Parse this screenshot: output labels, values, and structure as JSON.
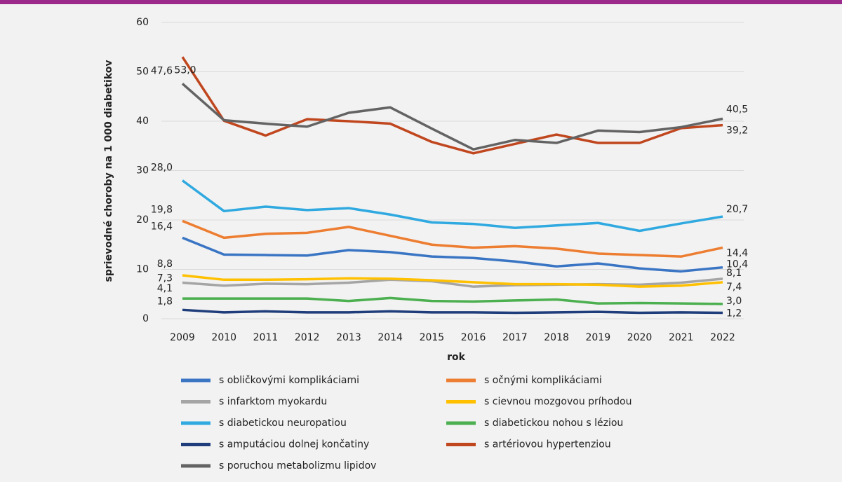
{
  "chart_data": {
    "type": "line",
    "x_label": "rok",
    "y_label": "sprievodné choroby na 1 000 diabetikov",
    "categories": [
      "2009",
      "2010",
      "2011",
      "2012",
      "2013",
      "2014",
      "2015",
      "2016",
      "2017",
      "2018",
      "2019",
      "2020",
      "2021",
      "2022"
    ],
    "ylim": [
      0,
      60
    ],
    "yticks": [
      0,
      10,
      20,
      30,
      40,
      50,
      60
    ],
    "grid": true,
    "series": [
      {
        "name": "s obličkovými komplikáciami",
        "color": "#3a75c4",
        "values": [
          16.4,
          13.0,
          12.9,
          12.8,
          13.9,
          13.5,
          12.6,
          12.3,
          11.6,
          10.6,
          11.2,
          10.2,
          9.6,
          10.4
        ],
        "value_labels": [
          "16,4",
          null,
          null,
          null,
          null,
          null,
          null,
          null,
          null,
          null,
          null,
          null,
          null,
          "10,4"
        ]
      },
      {
        "name": "s očnými komplikáciami",
        "color": "#ed7d31",
        "values": [
          19.8,
          16.4,
          17.2,
          17.4,
          18.6,
          16.8,
          15.0,
          14.4,
          14.7,
          14.2,
          13.2,
          12.9,
          12.6,
          14.4
        ],
        "value_labels": [
          "19,8",
          null,
          null,
          null,
          null,
          null,
          null,
          null,
          null,
          null,
          null,
          null,
          null,
          "14,4"
        ]
      },
      {
        "name": "s infarktom myokardu",
        "color": "#a5a5a5",
        "values": [
          7.3,
          6.7,
          7.1,
          7.0,
          7.3,
          7.9,
          7.6,
          6.5,
          6.8,
          6.9,
          7.0,
          6.9,
          7.3,
          8.1
        ],
        "value_labels": [
          "7,3",
          null,
          null,
          null,
          null,
          null,
          null,
          null,
          null,
          null,
          null,
          null,
          null,
          "8,1"
        ]
      },
      {
        "name": "s cievnou mozgovou príhodou",
        "color": "#ffc000",
        "values": [
          8.8,
          7.9,
          7.9,
          8.0,
          8.2,
          8.1,
          7.8,
          7.4,
          7.0,
          7.0,
          6.9,
          6.5,
          6.7,
          7.4
        ],
        "value_labels": [
          "8,8",
          null,
          null,
          null,
          null,
          null,
          null,
          null,
          null,
          null,
          null,
          null,
          null,
          "7,4"
        ]
      },
      {
        "name": "s diabetickou neuropatiou",
        "color": "#2fa9e0",
        "values": [
          28.0,
          21.8,
          22.7,
          22.0,
          22.4,
          21.1,
          19.5,
          19.2,
          18.4,
          18.9,
          19.4,
          17.8,
          19.3,
          20.7
        ],
        "value_labels": [
          "28,0",
          null,
          null,
          null,
          null,
          null,
          null,
          null,
          null,
          null,
          null,
          null,
          null,
          "20,7"
        ]
      },
      {
        "name": "s diabetickou nohou s léziou",
        "color": "#4caf50",
        "values": [
          4.1,
          4.1,
          4.1,
          4.1,
          3.6,
          4.2,
          3.6,
          3.5,
          3.7,
          3.9,
          3.1,
          3.2,
          3.1,
          3.0
        ],
        "value_labels": [
          "4,1",
          null,
          null,
          null,
          null,
          null,
          null,
          null,
          null,
          null,
          null,
          null,
          null,
          "3,0"
        ]
      },
      {
        "name": "s amputáciou dolnej končatiny",
        "color": "#1f3d7a",
        "values": [
          1.8,
          1.3,
          1.5,
          1.3,
          1.3,
          1.5,
          1.3,
          1.3,
          1.2,
          1.3,
          1.4,
          1.2,
          1.3,
          1.2
        ],
        "value_labels": [
          "1,8",
          null,
          null,
          null,
          null,
          null,
          null,
          null,
          null,
          null,
          null,
          null,
          null,
          "1,2"
        ]
      },
      {
        "name": "s artériovou hypertenziou",
        "color": "#c0461e",
        "values": [
          53.0,
          40.1,
          37.1,
          40.4,
          40.0,
          39.5,
          35.8,
          33.5,
          35.4,
          37.3,
          35.6,
          35.6,
          38.6,
          39.2
        ],
        "value_labels": [
          "53,0",
          null,
          null,
          null,
          null,
          null,
          null,
          null,
          null,
          null,
          null,
          null,
          null,
          "39,2"
        ]
      },
      {
        "name": "s poruchou metabolizmu lipidov",
        "color": "#636363",
        "values": [
          47.6,
          40.2,
          39.5,
          38.9,
          41.7,
          42.8,
          38.5,
          34.3,
          36.2,
          35.6,
          38.1,
          37.8,
          38.8,
          40.5
        ],
        "value_labels": [
          "47,6",
          null,
          null,
          null,
          null,
          null,
          null,
          null,
          null,
          null,
          null,
          null,
          null,
          "40,5"
        ]
      }
    ]
  }
}
